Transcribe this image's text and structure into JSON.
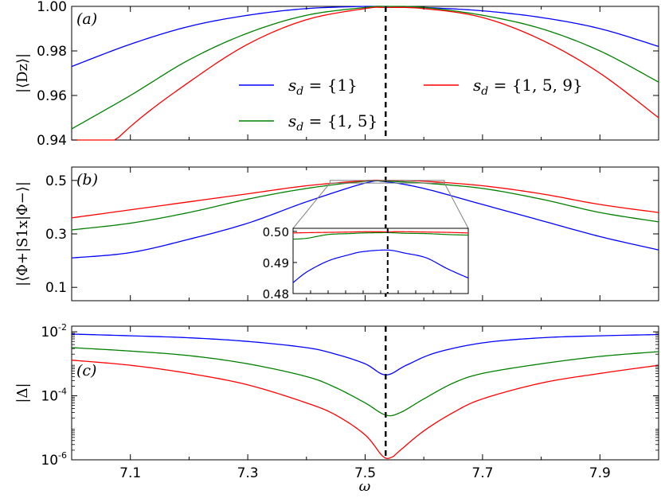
{
  "chart_data": [
    {
      "panel": "(a)",
      "type": "line",
      "ylabel": "|⟨D_z⟩|",
      "xlim": [
        7.0,
        8.0
      ],
      "ylim": [
        0.94,
        1.0
      ],
      "yticks": [
        "0.94",
        "0.96",
        "0.98",
        "1.00"
      ],
      "vline_x": 7.535,
      "series": [
        {
          "name": "s_d = {1}",
          "color": "#0000ff",
          "x": [
            7.0,
            7.1,
            7.2,
            7.3,
            7.4,
            7.5,
            7.535,
            7.6,
            7.7,
            7.8,
            7.9,
            8.0
          ],
          "y": [
            0.973,
            0.983,
            0.991,
            0.996,
            0.999,
            1.0,
            1.0,
            0.9995,
            0.998,
            0.995,
            0.99,
            0.982
          ]
        },
        {
          "name": "s_d = {1,5}",
          "color": "#008000",
          "x": [
            7.0,
            7.1,
            7.2,
            7.3,
            7.4,
            7.5,
            7.535,
            7.6,
            7.7,
            7.8,
            7.9,
            8.0
          ],
          "y": [
            0.945,
            0.96,
            0.976,
            0.988,
            0.996,
            0.9995,
            1.0,
            0.9995,
            0.996,
            0.99,
            0.98,
            0.966
          ]
        },
        {
          "name": "s_d = {1,5,9}",
          "color": "#ff0000",
          "x": [
            7.0,
            7.1,
            7.2,
            7.3,
            7.4,
            7.5,
            7.535,
            7.6,
            7.7,
            7.8,
            7.9,
            8.0
          ],
          "y": [
            0.92,
            0.946,
            0.966,
            0.983,
            0.994,
            0.999,
            0.9995,
            0.999,
            0.995,
            0.985,
            0.97,
            0.95
          ]
        }
      ]
    },
    {
      "panel": "(b)",
      "type": "line",
      "ylabel": "|⟨Φ+|S1x|Φ−⟩|",
      "xlim": [
        7.0,
        8.0
      ],
      "ylim": [
        0.05,
        0.55
      ],
      "yticks": [
        "0.1",
        "0.3",
        "0.5"
      ],
      "vline_x": 7.535,
      "series": [
        {
          "name": "s_d = {1}",
          "color": "#0000ff",
          "x": [
            7.0,
            7.1,
            7.2,
            7.3,
            7.4,
            7.5,
            7.535,
            7.6,
            7.7,
            7.8,
            7.9,
            8.0
          ],
          "y": [
            0.21,
            0.23,
            0.28,
            0.34,
            0.42,
            0.49,
            0.495,
            0.47,
            0.41,
            0.35,
            0.29,
            0.24
          ]
        },
        {
          "name": "s_d = {1,5}",
          "color": "#008000",
          "x": [
            7.0,
            7.1,
            7.2,
            7.3,
            7.4,
            7.5,
            7.535,
            7.6,
            7.7,
            7.8,
            7.9,
            8.0
          ],
          "y": [
            0.315,
            0.34,
            0.38,
            0.43,
            0.47,
            0.497,
            0.497,
            0.49,
            0.47,
            0.43,
            0.38,
            0.345
          ]
        },
        {
          "name": "s_d = {1,5,9}",
          "color": "#ff0000",
          "x": [
            7.0,
            7.1,
            7.2,
            7.3,
            7.4,
            7.5,
            7.535,
            7.6,
            7.7,
            7.8,
            7.9,
            8.0
          ],
          "y": [
            0.36,
            0.39,
            0.42,
            0.45,
            0.48,
            0.499,
            0.5,
            0.497,
            0.48,
            0.45,
            0.41,
            0.38
          ]
        }
      ],
      "inset": {
        "xlim": [
          7.4,
          7.65
        ],
        "ylim": [
          0.48,
          0.501
        ],
        "yticks": [
          "0.48",
          "0.49",
          "0.50"
        ],
        "series": [
          {
            "color": "#0000ff",
            "x": [
              7.4,
              7.42,
              7.45,
              7.48,
              7.5,
              7.535,
              7.56,
              7.59,
              7.62,
              7.65
            ],
            "y": [
              0.4835,
              0.487,
              0.4905,
              0.4925,
              0.4935,
              0.494,
              0.493,
              0.4915,
              0.488,
              0.485
            ]
          },
          {
            "color": "#008000",
            "x": [
              7.4,
              7.42,
              7.45,
              7.48,
              7.5,
              7.535,
              7.56,
              7.59,
              7.62,
              7.65
            ],
            "y": [
              0.4975,
              0.4978,
              0.499,
              0.4993,
              0.4995,
              0.4996,
              0.4994,
              0.4993,
              0.499,
              0.4988
            ]
          },
          {
            "color": "#ff0000",
            "x": [
              7.4,
              7.42,
              7.45,
              7.48,
              7.5,
              7.535,
              7.56,
              7.59,
              7.62,
              7.65
            ],
            "y": [
              0.4995,
              0.4996,
              0.4997,
              0.4998,
              0.4999,
              0.4999,
              0.4999,
              0.4998,
              0.4997,
              0.4995
            ]
          }
        ]
      }
    },
    {
      "panel": "(c)",
      "type": "line",
      "ylabel": "|Δ|",
      "yscale": "log",
      "xlim": [
        7.0,
        8.0
      ],
      "ylim": [
        1e-06,
        0.015
      ],
      "yticks": [
        {
          "base": "10",
          "exp": "-2"
        },
        {
          "base": "10",
          "exp": "-4"
        },
        {
          "base": "10",
          "exp": "-6"
        }
      ],
      "vline_x": 7.535,
      "series": [
        {
          "name": "s_d = {1}",
          "color": "#0000ff",
          "x": [
            7.0,
            7.1,
            7.2,
            7.3,
            7.4,
            7.45,
            7.5,
            7.535,
            7.57,
            7.62,
            7.7,
            7.8,
            7.9,
            8.0
          ],
          "y": [
            0.0085,
            0.0075,
            0.0065,
            0.005,
            0.0032,
            0.002,
            0.001,
            0.00045,
            0.0009,
            0.0022,
            0.0045,
            0.0065,
            0.0075,
            0.0082
          ]
        },
        {
          "name": "s_d = {1,5}",
          "color": "#008000",
          "x": [
            7.0,
            7.1,
            7.2,
            7.3,
            7.4,
            7.45,
            7.5,
            7.535,
            7.56,
            7.6,
            7.65,
            7.7,
            7.8,
            7.9,
            8.0
          ],
          "y": [
            0.0032,
            0.0025,
            0.0018,
            0.001,
            0.0004,
            0.00018,
            6e-05,
            2.5e-05,
            3e-05,
            8e-05,
            0.00025,
            0.0005,
            0.001,
            0.0017,
            0.0024
          ]
        },
        {
          "name": "s_d = {1,5,9}",
          "color": "#ff0000",
          "x": [
            7.0,
            7.1,
            7.2,
            7.3,
            7.4,
            7.45,
            7.5,
            7.53,
            7.545,
            7.56,
            7.6,
            7.65,
            7.7,
            7.8,
            7.9,
            8.0
          ],
          "y": [
            0.0013,
            0.0009,
            0.0005,
            0.00022,
            6e-05,
            2.5e-05,
            6e-06,
            1.3e-06,
            1.2e-06,
            2e-06,
            8e-06,
            3e-05,
            8e-05,
            0.00025,
            0.0005,
            0.0009
          ]
        }
      ]
    }
  ],
  "xticks": [
    "7.1",
    "7.3",
    "7.5",
    "7.7",
    "7.9"
  ],
  "xlabel": "ω",
  "legend": {
    "items": [
      {
        "label": "s_d = {1}",
        "color": "#0000ff"
      },
      {
        "label": "s_d = {1,5}",
        "color": "#008000"
      },
      {
        "label": "s_d = {1,5,9}",
        "color": "#ff0000"
      }
    ]
  },
  "labels": {
    "a": "(a)",
    "b": "(b)",
    "c": "(c)",
    "x_axis": "ω",
    "y_a": "|⟨Dz⟩|",
    "y_b": "|⟨Φ+|S1x|Φ−⟩|",
    "y_c": "|Δ|"
  }
}
